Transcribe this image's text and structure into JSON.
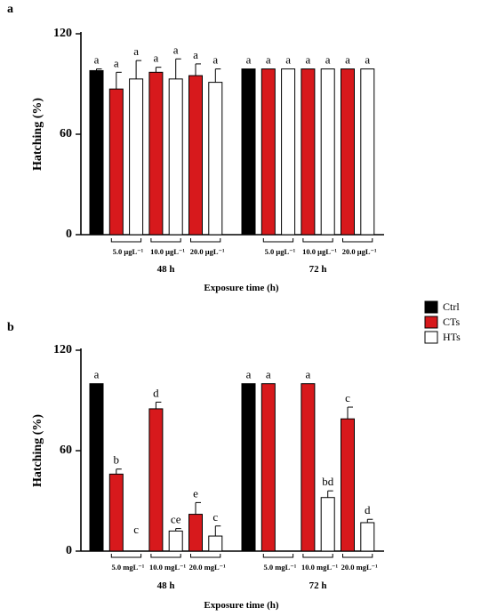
{
  "legend": [
    {
      "name": "Ctrl",
      "color": "#000000"
    },
    {
      "name": "CTs",
      "color": "#d7191c"
    },
    {
      "name": "HTs",
      "color": "#ffffff"
    }
  ],
  "chart_data": [
    {
      "panel": "a",
      "type": "bar",
      "ylabel": "Hatching (%)",
      "xlabel": "Exposure time (h)",
      "ylim": [
        0,
        120
      ],
      "yticks": [
        0,
        60,
        120
      ],
      "groups": [
        {
          "label": "48 h",
          "concentrations": [
            "5.0 μgL⁻¹",
            "10.0 μgL⁻¹",
            "20.0 μgL⁻¹"
          ],
          "bars": [
            {
              "series": "Ctrl",
              "value": 98,
              "error": 1,
              "letter": "a"
            },
            {
              "series": "CTs",
              "value": 87,
              "error": 10,
              "letter": "a"
            },
            {
              "series": "HTs",
              "value": 93,
              "error": 11,
              "letter": "a"
            },
            {
              "series": "CTs",
              "value": 97,
              "error": 3,
              "letter": "a"
            },
            {
              "series": "HTs",
              "value": 93,
              "error": 12,
              "letter": "a"
            },
            {
              "series": "CTs",
              "value": 95,
              "error": 7,
              "letter": "a"
            },
            {
              "series": "HTs",
              "value": 91,
              "error": 8,
              "letter": "a"
            }
          ]
        },
        {
          "label": "72 h",
          "concentrations": [
            "5.0 μgL⁻¹",
            "10.0 μgL⁻¹",
            "20.0 μgL⁻¹"
          ],
          "bars": [
            {
              "series": "Ctrl",
              "value": 99,
              "error": 0,
              "letter": "a"
            },
            {
              "series": "CTs",
              "value": 99,
              "error": 0,
              "letter": "a"
            },
            {
              "series": "HTs",
              "value": 99,
              "error": 0,
              "letter": "a"
            },
            {
              "series": "CTs",
              "value": 99,
              "error": 0,
              "letter": "a"
            },
            {
              "series": "HTs",
              "value": 99,
              "error": 0,
              "letter": "a"
            },
            {
              "series": "CTs",
              "value": 99,
              "error": 0,
              "letter": "a"
            },
            {
              "series": "HTs",
              "value": 99,
              "error": 0,
              "letter": "a"
            }
          ]
        }
      ]
    },
    {
      "panel": "b",
      "type": "bar",
      "ylabel": "Hatching (%)",
      "xlabel": "Exposure time (h)",
      "ylim": [
        0,
        120
      ],
      "yticks": [
        0,
        60,
        120
      ],
      "groups": [
        {
          "label": "48 h",
          "concentrations": [
            "5.0 mgL⁻¹",
            "10.0 mgL⁻¹",
            "20.0 mgL⁻¹"
          ],
          "bars": [
            {
              "series": "Ctrl",
              "value": 100,
              "error": 0,
              "letter": "a"
            },
            {
              "series": "CTs",
              "value": 46,
              "error": 3,
              "letter": "b"
            },
            {
              "series": "HTs",
              "value": 0,
              "error": 0,
              "letter": "c"
            },
            {
              "series": "CTs",
              "value": 85,
              "error": 4,
              "letter": "d"
            },
            {
              "series": "HTs",
              "value": 12,
              "error": 1.5,
              "letter": "ce"
            },
            {
              "series": "CTs",
              "value": 22,
              "error": 7,
              "letter": "e"
            },
            {
              "series": "HTs",
              "value": 9,
              "error": 6,
              "letter": "c"
            }
          ]
        },
        {
          "label": "72 h",
          "concentrations": [
            "5.0 mgL⁻¹",
            "10.0 mgL⁻¹",
            "20.0 mgL⁻¹"
          ],
          "bars": [
            {
              "series": "Ctrl",
              "value": 100,
              "error": 0,
              "letter": "a"
            },
            {
              "series": "CTs",
              "value": 100,
              "error": 0,
              "letter": "a"
            },
            {
              "series": "HTs",
              "value": 0,
              "error": 0,
              "letter": ""
            },
            {
              "series": "CTs",
              "value": 100,
              "error": 0,
              "letter": "a"
            },
            {
              "series": "HTs",
              "value": 32,
              "error": 4,
              "letter": "bd"
            },
            {
              "series": "CTs",
              "value": 79,
              "error": 7,
              "letter": "c"
            },
            {
              "series": "HTs",
              "value": 17,
              "error": 2,
              "letter": "d"
            }
          ]
        }
      ]
    }
  ]
}
